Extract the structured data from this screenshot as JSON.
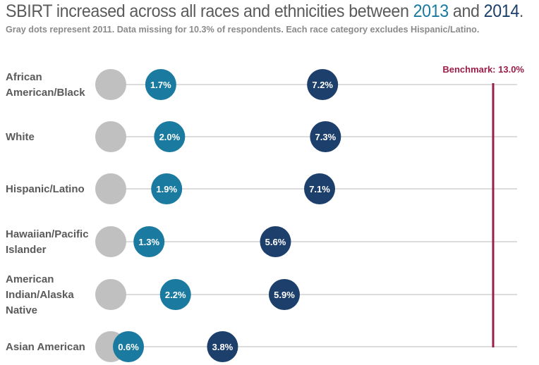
{
  "title": {
    "prefix": "SBIRT increased across all races and ethnicities between ",
    "year_a": "2013",
    "middle": " and ",
    "year_b": "2014",
    "suffix": "."
  },
  "subtitle": "Gray dots represent 2011. Data missing for 10.3% of respondents. Each race category excludes Hispanic/Latino.",
  "colors": {
    "gray_2011": "#c0c0c0",
    "series_2013": "#1a7aa0",
    "series_2014": "#1d3f6b",
    "benchmark": "#9c1d47",
    "gridline": "#c8c8c8"
  },
  "chart_data": {
    "type": "scatter",
    "categories": [
      [
        "African",
        "American/Black"
      ],
      [
        "White"
      ],
      [
        "Hispanic/Latino"
      ],
      [
        "Hawaiian/Pacific",
        "Islander"
      ],
      [
        "American",
        "Indian/Alaska",
        "Native"
      ],
      [
        "Asian American"
      ]
    ],
    "series": [
      {
        "name": "2011",
        "values": [
          0,
          0,
          0,
          0,
          0,
          0
        ],
        "labels": [
          "",
          "",
          "",
          "",
          "",
          ""
        ]
      },
      {
        "name": "2013",
        "values": [
          1.7,
          2.0,
          1.9,
          1.3,
          2.2,
          0.6
        ],
        "labels": [
          "1.7%",
          "2.0%",
          "1.9%",
          "1.3%",
          "2.2%",
          "0.6%"
        ]
      },
      {
        "name": "2014",
        "values": [
          7.2,
          7.3,
          7.1,
          5.6,
          5.9,
          3.8
        ],
        "labels": [
          "7.2%",
          "7.3%",
          "7.1%",
          "5.6%",
          "5.9%",
          "3.8%"
        ]
      }
    ],
    "benchmark": {
      "value": 13.0,
      "label": "Benchmark: 13.0%"
    },
    "xlim": [
      0,
      13.0
    ],
    "grid": true,
    "legend": "none"
  }
}
